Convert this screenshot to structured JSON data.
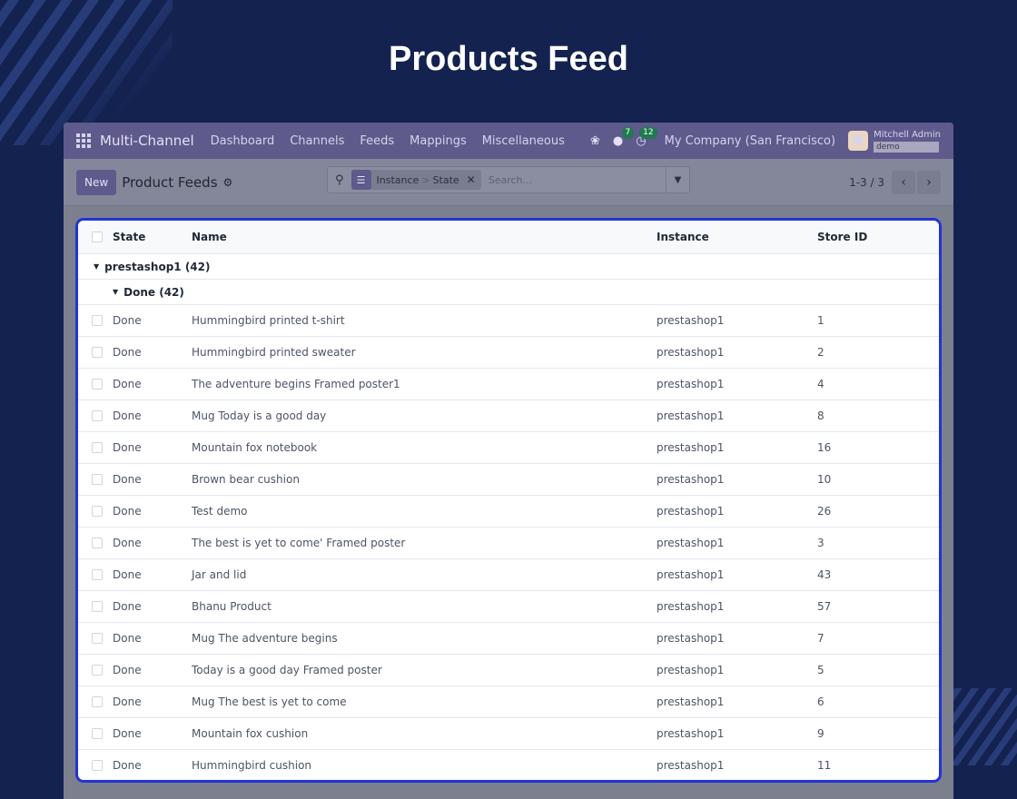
{
  "page": {
    "title": "Products Feed"
  },
  "navbar": {
    "brand": "Multi-Channel",
    "menu": [
      "Dashboard",
      "Channels",
      "Feeds",
      "Mappings",
      "Miscellaneous"
    ],
    "messages_count": "7",
    "activities_count": "12",
    "company": "My Company (San Francisco)",
    "user": "Mitchell Admin",
    "database": "demo"
  },
  "control": {
    "new_label": "New",
    "title": "Product Feeds",
    "facet": {
      "first": "Instance",
      "separator": ">",
      "second": "State"
    },
    "search_placeholder": "Search...",
    "pager": "1-3 / 3"
  },
  "list": {
    "columns": [
      "State",
      "Name",
      "Instance",
      "Store ID"
    ],
    "group_1": "prestashop1 (42)",
    "group_2": "Done (42)",
    "rows": [
      {
        "state": "Done",
        "name": "Hummingbird printed t-shirt",
        "instance": "prestashop1",
        "store_id": "1"
      },
      {
        "state": "Done",
        "name": "Hummingbird printed sweater",
        "instance": "prestashop1",
        "store_id": "2"
      },
      {
        "state": "Done",
        "name": "The adventure begins Framed poster1",
        "instance": "prestashop1",
        "store_id": "4"
      },
      {
        "state": "Done",
        "name": "Mug Today is a good day",
        "instance": "prestashop1",
        "store_id": "8"
      },
      {
        "state": "Done",
        "name": "Mountain fox notebook",
        "instance": "prestashop1",
        "store_id": "16"
      },
      {
        "state": "Done",
        "name": "Brown bear cushion",
        "instance": "prestashop1",
        "store_id": "10"
      },
      {
        "state": "Done",
        "name": "Test demo",
        "instance": "prestashop1",
        "store_id": "26"
      },
      {
        "state": "Done",
        "name": "The best is yet to come' Framed poster",
        "instance": "prestashop1",
        "store_id": "3"
      },
      {
        "state": "Done",
        "name": "Jar and lid",
        "instance": "prestashop1",
        "store_id": "43"
      },
      {
        "state": "Done",
        "name": "Bhanu Product",
        "instance": "prestashop1",
        "store_id": "57"
      },
      {
        "state": "Done",
        "name": "Mug The adventure begins",
        "instance": "prestashop1",
        "store_id": "7"
      },
      {
        "state": "Done",
        "name": "Today is a good day Framed poster",
        "instance": "prestashop1",
        "store_id": "5"
      },
      {
        "state": "Done",
        "name": "Mug The best is yet to come",
        "instance": "prestashop1",
        "store_id": "6"
      },
      {
        "state": "Done",
        "name": "Mountain fox cushion",
        "instance": "prestashop1",
        "store_id": "9"
      },
      {
        "state": "Done",
        "name": "Hummingbird cushion",
        "instance": "prestashop1",
        "store_id": "11"
      }
    ]
  },
  "colors": {
    "background": "#13224f",
    "navbar": "#5e5a8c",
    "highlight_border": "#2233d6"
  },
  "icons": [
    "apps-grid-icon",
    "bug-icon",
    "chat-icon",
    "clock-icon",
    "gear-icon",
    "search-icon",
    "layers-icon",
    "close-icon",
    "caret-down-icon",
    "chevron-left-icon",
    "chevron-right-icon"
  ]
}
